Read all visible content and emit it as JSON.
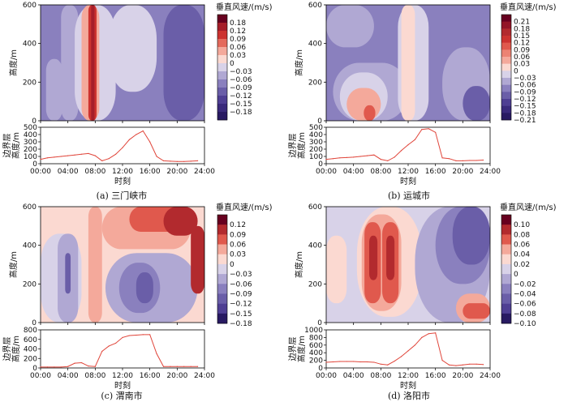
{
  "chart_data": [
    {
      "panel": "(a)",
      "caption_city": "三门峡市",
      "type": "heatmap",
      "contour": {
        "xlim": [
          0,
          24
        ],
        "ylim": [
          0,
          600
        ],
        "x_ticks": [
          "00:00",
          "04:00",
          "08:00",
          "12:00",
          "16:00",
          "20:00",
          "24:00"
        ],
        "y_ticks": [
          0,
          200,
          400,
          600
        ],
        "ylabel": "高度/m",
        "colorbar_label": "垂直风速/(m/s)",
        "colorbar_ticks": [
          "0.18",
          "0.12",
          "0.09",
          "0.06",
          "0.03",
          "0",
          "−0.03",
          "−0.06",
          "−0.09",
          "−0.12",
          "−0.15",
          "−0.18"
        ],
        "colors": [
          "#67001f",
          "#a61e2a",
          "#cc3330",
          "#e46a5c",
          "#f4a99b",
          "#fbd9d1",
          "#d8d2e8",
          "#b0a8d3",
          "#8a80be",
          "#6a5ea8",
          "#4f3f93",
          "#3a2a7c",
          "#281a62"
        ],
        "regions": [
          {
            "x": [
              0,
              24
            ],
            "y": [
              0,
              600
            ],
            "level": -0.09
          },
          {
            "x": [
              0,
              3
            ],
            "y": [
              0,
              600
            ],
            "level": -0.09
          },
          {
            "x": [
              0.8,
              3.2
            ],
            "y": [
              0,
              320
            ],
            "level": -0.06
          },
          {
            "x": [
              3,
              5.5
            ],
            "y": [
              0,
              600
            ],
            "level": -0.06
          },
          {
            "x": [
              5,
              11
            ],
            "y": [
              0,
              600
            ],
            "level": -0.03
          },
          {
            "x": [
              6,
              8.6
            ],
            "y": [
              0,
              600
            ],
            "level": 0.03
          },
          {
            "x": [
              7,
              8.2
            ],
            "y": [
              0,
              600
            ],
            "level": 0.09
          },
          {
            "x": [
              7.4,
              7.9
            ],
            "y": [
              0,
              600
            ],
            "level": 0.15
          },
          {
            "x": [
              10,
              17
            ],
            "y": [
              150,
              600
            ],
            "level": -0.03
          },
          {
            "x": [
              18,
              24
            ],
            "y": [
              0,
              600
            ],
            "level": -0.12
          }
        ]
      },
      "pbl": {
        "ylabel": "边界层高度/m",
        "xlabel": "时刻",
        "ylim": [
          0,
          500
        ],
        "y_ticks": [
          0,
          100,
          200,
          300,
          400,
          500
        ],
        "x": [
          0,
          1,
          2,
          3,
          4,
          5,
          6,
          7,
          8,
          9,
          10,
          11,
          12,
          13,
          14,
          15,
          16,
          17,
          18,
          19,
          20,
          21,
          22,
          23
        ],
        "y": [
          60,
          80,
          90,
          100,
          110,
          120,
          130,
          140,
          110,
          40,
          70,
          130,
          220,
          330,
          400,
          450,
          300,
          100,
          40,
          35,
          30,
          30,
          35,
          40
        ]
      }
    },
    {
      "panel": "(b)",
      "caption_city": "运城市",
      "type": "heatmap",
      "contour": {
        "xlim": [
          0,
          24
        ],
        "ylim": [
          0,
          600
        ],
        "x_ticks": [
          "00:00",
          "04:00",
          "08:00",
          "12:00",
          "16:00",
          "20:00",
          "24:00"
        ],
        "y_ticks": [
          0,
          200,
          400,
          600
        ],
        "ylabel": "高度/m",
        "colorbar_label": "垂直风速/(m/s)",
        "colorbar_ticks": [
          "0.21",
          "0.18",
          "0.15",
          "0.12",
          "0.09",
          "0.06",
          "0.03",
          "0",
          "−0.03",
          "−0.06",
          "−0.09",
          "−0.12",
          "−0.15",
          "−0.18",
          "−0.21"
        ],
        "colors": [
          "#67001f",
          "#921527",
          "#b22a2e",
          "#cc3330",
          "#e0594d",
          "#ec8373",
          "#f4a99b",
          "#fbd9d1",
          "#d8d2e8",
          "#b0a8d3",
          "#8a80be",
          "#6a5ea8",
          "#4f3f93",
          "#3a2a7c",
          "#281a62"
        ],
        "regions": [
          {
            "x": [
              0,
              24
            ],
            "y": [
              0,
              600
            ],
            "level": -0.09
          },
          {
            "x": [
              0,
              7
            ],
            "y": [
              380,
              600
            ],
            "level": -0.06
          },
          {
            "x": [
              1,
              12
            ],
            "y": [
              0,
              300
            ],
            "level": -0.06
          },
          {
            "x": [
              2,
              9
            ],
            "y": [
              0,
              250
            ],
            "level": -0.03
          },
          {
            "x": [
              3,
              8
            ],
            "y": [
              0,
              170
            ],
            "level": 0.03
          },
          {
            "x": [
              5.5,
              7.2
            ],
            "y": [
              0,
              80
            ],
            "level": 0.09
          },
          {
            "x": [
              10.5,
              15
            ],
            "y": [
              0,
              600
            ],
            "level": -0.03
          },
          {
            "x": [
              11,
              13
            ],
            "y": [
              0,
              600
            ],
            "level": 0
          },
          {
            "x": [
              17,
              24
            ],
            "y": [
              0,
              380
            ],
            "level": -0.06
          },
          {
            "x": [
              20,
              24
            ],
            "y": [
              0,
              180
            ],
            "level": -0.12
          }
        ]
      },
      "pbl": {
        "ylabel": "边界层高度/m",
        "xlabel": "时刻",
        "ylim": [
          0,
          500
        ],
        "y_ticks": [
          0,
          100,
          200,
          300,
          400,
          500
        ],
        "x": [
          0,
          1,
          2,
          3,
          4,
          5,
          6,
          7,
          8,
          9,
          10,
          11,
          12,
          13,
          14,
          15,
          16,
          17,
          18,
          19,
          20,
          21,
          22,
          23
        ],
        "y": [
          60,
          70,
          80,
          85,
          90,
          100,
          110,
          120,
          60,
          40,
          90,
          180,
          260,
          330,
          470,
          480,
          430,
          80,
          70,
          40,
          40,
          45,
          45,
          50
        ]
      }
    },
    {
      "panel": "(c)",
      "caption_city": "渭南市",
      "type": "heatmap",
      "contour": {
        "xlim": [
          0,
          24
        ],
        "ylim": [
          0,
          600
        ],
        "x_ticks": [
          "00:00",
          "04:00",
          "08:00",
          "12:00",
          "16:00",
          "20:00",
          "24:00"
        ],
        "y_ticks": [
          0,
          200,
          400,
          600
        ],
        "ylabel": "高度/m",
        "colorbar_label": "垂直风速/(m/s)",
        "colorbar_ticks": [
          "0.12",
          "0.09",
          "0.06",
          "0.03",
          "0",
          "−0.03",
          "−0.06",
          "−0.09",
          "−0.12",
          "−0.15",
          "−0.18"
        ],
        "colors": [
          "#67001f",
          "#b22a2e",
          "#e0594d",
          "#f4a99b",
          "#fbd9d1",
          "#d8d2e8",
          "#b0a8d3",
          "#8a80be",
          "#6a5ea8",
          "#4f3f93",
          "#281a62"
        ],
        "regions": [
          {
            "x": [
              0,
              24
            ],
            "y": [
              0,
              600
            ],
            "level": 0
          },
          {
            "x": [
              0,
              6
            ],
            "y": [
              0,
              460
            ],
            "level": -0.03
          },
          {
            "x": [
              2.5,
              5.5
            ],
            "y": [
              0,
              460
            ],
            "level": -0.06
          },
          {
            "x": [
              3.6,
              4.4
            ],
            "y": [
              150,
              360
            ],
            "level": -0.12
          },
          {
            "x": [
              7,
              9
            ],
            "y": [
              0,
              600
            ],
            "level": 0.03
          },
          {
            "x": [
              9.5,
              23
            ],
            "y": [
              0,
              360
            ],
            "level": -0.06
          },
          {
            "x": [
              11.5,
              17.5
            ],
            "y": [
              50,
              310
            ],
            "level": -0.09
          },
          {
            "x": [
              14,
              16.5
            ],
            "y": [
              100,
              260
            ],
            "level": -0.12
          },
          {
            "x": [
              9,
              22
            ],
            "y": [
              380,
              600
            ],
            "level": 0.03
          },
          {
            "x": [
              13,
              22
            ],
            "y": [
              470,
              600
            ],
            "level": 0.06
          },
          {
            "x": [
              18,
              23
            ],
            "y": [
              450,
              600
            ],
            "level": 0.09
          },
          {
            "x": [
              22,
              24
            ],
            "y": [
              150,
              500
            ],
            "level": 0.09
          }
        ]
      },
      "pbl": {
        "ylabel": "边界层高度/m",
        "xlabel": "时刻",
        "ylim": [
          0,
          800
        ],
        "y_ticks": [
          0,
          200,
          400,
          600,
          800
        ],
        "x": [
          0,
          1,
          2,
          3,
          4,
          5,
          6,
          7,
          8,
          9,
          10,
          11,
          12,
          13,
          14,
          15,
          16,
          17,
          18,
          19,
          20,
          21,
          22,
          23
        ],
        "y": [
          20,
          20,
          20,
          20,
          30,
          100,
          110,
          40,
          30,
          350,
          460,
          520,
          640,
          680,
          690,
          700,
          700,
          300,
          30,
          30,
          30,
          30,
          30,
          30
        ]
      }
    },
    {
      "panel": "(d)",
      "caption_city": "洛阳市",
      "type": "heatmap",
      "contour": {
        "xlim": [
          0,
          24
        ],
        "ylim": [
          0,
          600
        ],
        "x_ticks": [
          "00:00",
          "04:00",
          "08:00",
          "12:00",
          "16:00",
          "20:00",
          "24:00"
        ],
        "y_ticks": [
          0,
          200,
          400,
          600
        ],
        "ylabel": "高度/m",
        "colorbar_label": "垂直风速/(m/s)",
        "colorbar_ticks": [
          "0.10",
          "0.08",
          "0.06",
          "0.04",
          "0.02",
          "0",
          "−0.02",
          "−0.04",
          "−0.06",
          "−0.08",
          "−0.10"
        ],
        "colors": [
          "#67001f",
          "#b22a2e",
          "#e0594d",
          "#f4a99b",
          "#fbd9d1",
          "#d8d2e8",
          "#b0a8d3",
          "#8a80be",
          "#6a5ea8",
          "#4f3f93",
          "#281a62"
        ],
        "regions": [
          {
            "x": [
              0,
              24
            ],
            "y": [
              0,
              600
            ],
            "level": 0.01
          },
          {
            "x": [
              0,
              3
            ],
            "y": [
              100,
              450
            ],
            "level": 0.03
          },
          {
            "x": [
              4.5,
              14
            ],
            "y": [
              30,
              600
            ],
            "level": 0.03
          },
          {
            "x": [
              5.2,
              11
            ],
            "y": [
              60,
              560
            ],
            "level": 0.05
          },
          {
            "x": [
              5.6,
              8
            ],
            "y": [
              100,
              520
            ],
            "level": 0.07
          },
          {
            "x": [
              8.2,
              10.6
            ],
            "y": [
              100,
              520
            ],
            "level": 0.07
          },
          {
            "x": [
              6.3,
              7.5
            ],
            "y": [
              220,
              450
            ],
            "level": 0.09
          },
          {
            "x": [
              8.8,
              10
            ],
            "y": [
              220,
              450
            ],
            "level": 0.09
          },
          {
            "x": [
              13,
              24
            ],
            "y": [
              0,
              600
            ],
            "level": -0.01
          },
          {
            "x": [
              16,
              24
            ],
            "y": [
              200,
              600
            ],
            "level": -0.03
          },
          {
            "x": [
              18.5,
              24
            ],
            "y": [
              300,
              600
            ],
            "level": -0.05
          },
          {
            "x": [
              19,
              24
            ],
            "y": [
              0,
              150
            ],
            "level": 0.05
          },
          {
            "x": [
              20,
              24
            ],
            "y": [
              20,
              100
            ],
            "level": 0.07
          }
        ]
      },
      "pbl": {
        "ylabel": "边界层高度/m",
        "xlabel": "时刻",
        "ylim": [
          0,
          1000
        ],
        "y_ticks": [
          0,
          200,
          400,
          600,
          800,
          1000
        ],
        "x": [
          0,
          1,
          2,
          3,
          4,
          5,
          6,
          7,
          8,
          9,
          10,
          11,
          12,
          13,
          14,
          15,
          16,
          17,
          18,
          19,
          20,
          21,
          22,
          23
        ],
        "y": [
          150,
          160,
          170,
          170,
          170,
          160,
          160,
          150,
          100,
          80,
          180,
          300,
          450,
          600,
          800,
          900,
          920,
          200,
          80,
          60,
          80,
          100,
          100,
          90
        ]
      }
    }
  ]
}
